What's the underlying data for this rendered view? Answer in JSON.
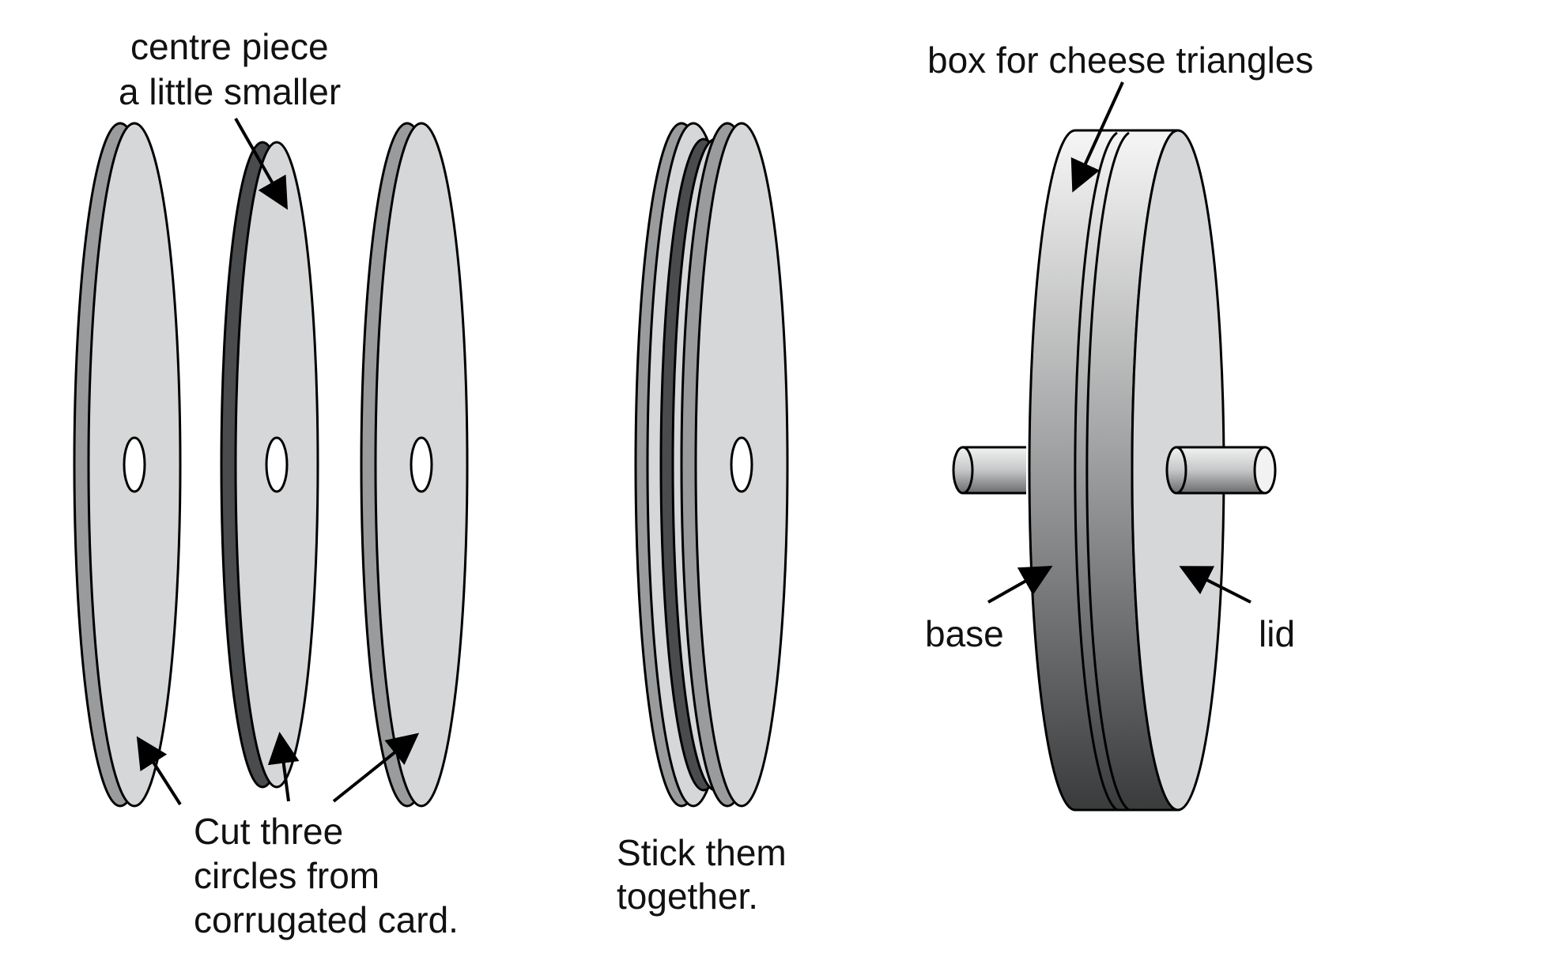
{
  "labels": {
    "centre_piece_line1": "centre piece",
    "centre_piece_line2": "a little smaller",
    "cut_line1": "Cut three",
    "cut_line2": "circles from",
    "cut_line3": "corrugated card.",
    "stick_line1": "Stick them",
    "stick_line2": "together.",
    "box_label": "box for cheese triangles",
    "base_label": "base",
    "lid_label": "lid"
  },
  "colors": {
    "disc_face": "#d6d7d8",
    "disc_edge": "#9a9b9c",
    "centre_edge": "#4a4b4c",
    "outline": "#000000",
    "box_light": "#f4f4f4",
    "box_dark": "#3a3b3c"
  }
}
